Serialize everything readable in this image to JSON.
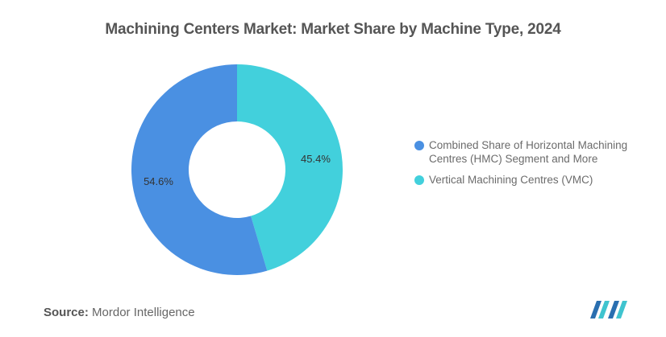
{
  "chart_data": {
    "type": "pie",
    "donut": true,
    "title": "Machining Centers Market: Market Share by Machine Type, 2024",
    "series": [
      {
        "name": "Combined Share of Horizontal Machining Centres (HMC) Segment and More",
        "value": 54.6,
        "label": "54.6%",
        "color": "#4a90e2"
      },
      {
        "name": "Vertical Machining Centres (VMC)",
        "value": 45.4,
        "label": "45.4%",
        "color": "#42d0dc"
      }
    ],
    "legend_position": "right"
  },
  "source": {
    "label": "Source:",
    "text": "Mordor Intelligence"
  },
  "logo": {
    "icon": "mordor-intelligence-logo-icon",
    "colors": [
      "#2a6fb0",
      "#3fc4cf"
    ]
  }
}
